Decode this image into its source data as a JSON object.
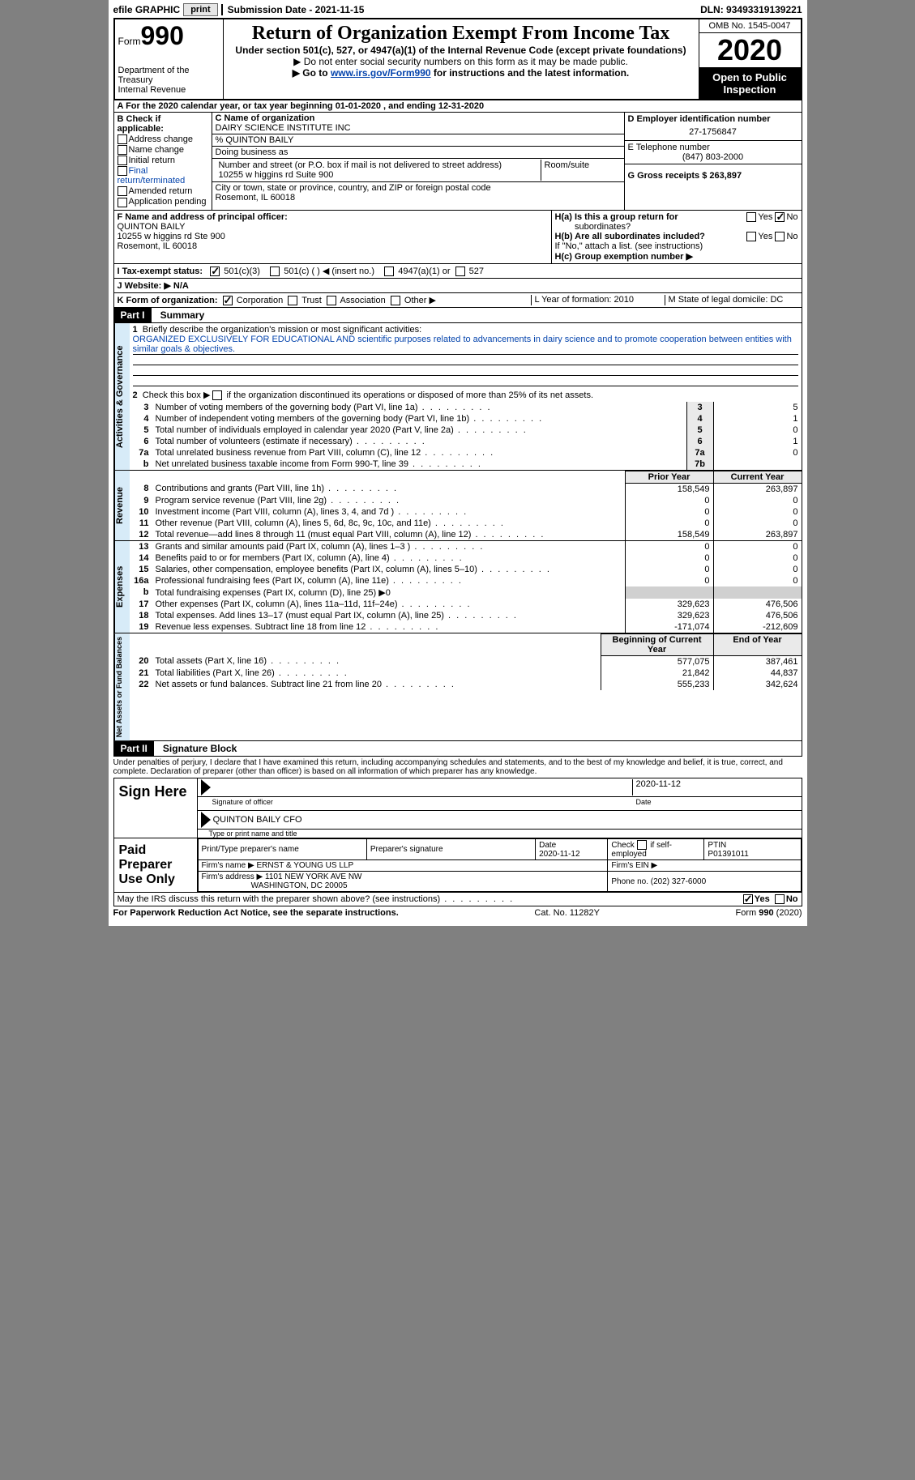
{
  "topbar": {
    "efile_label": "efile GRAPHIC",
    "print_btn": "print",
    "submission_label": "Submission Date - 2021-11-15",
    "dln": "DLN: 93493319139221"
  },
  "header": {
    "form_label": "Form",
    "form_number": "990",
    "dept": "Department of the Treasury",
    "irs": "Internal Revenue",
    "title": "Return of Organization Exempt From Income Tax",
    "subtitle": "Under section 501(c), 527, or 4947(a)(1) of the Internal Revenue Code (except private foundations)",
    "note1": "▶ Do not enter social security numbers on this form as it may be made public.",
    "note2_pre": "▶ Go to ",
    "note2_link": "www.irs.gov/Form990",
    "note2_post": " for instructions and the latest information.",
    "omb": "OMB No. 1545-0047",
    "year": "2020",
    "open": "Open to Public Inspection"
  },
  "row_a": "A For the 2020 calendar year, or tax year beginning 01-01-2020   , and ending 12-31-2020",
  "section_b": {
    "label": "B Check if applicable:",
    "items": [
      "Address change",
      "Name change",
      "Initial return",
      "Final return/terminated",
      "Amended return",
      "Application pending"
    ]
  },
  "section_c": {
    "name_label": "C Name of organization",
    "name": "DAIRY SCIENCE INSTITUTE INC",
    "care_of": "% QUINTON BAILY",
    "dba_label": "Doing business as",
    "addr_label": "Number and street (or P.O. box if mail is not delivered to street address)",
    "room_label": "Room/suite",
    "addr": "10255 w higgins rd Suite 900",
    "city_label": "City or town, state or province, country, and ZIP or foreign postal code",
    "city": "Rosemont, IL  60018"
  },
  "section_d": {
    "ein_label": "D Employer identification number",
    "ein": "27-1756847",
    "tel_label": "E Telephone number",
    "tel": "(847) 803-2000",
    "gross_label": "G Gross receipts $ 263,897"
  },
  "section_f": {
    "label": "F  Name and address of principal officer:",
    "name": "QUINTON BAILY",
    "addr1": "10255 w higgins rd Ste 900",
    "addr2": "Rosemont, IL  60018"
  },
  "section_h": {
    "ha_label": "H(a)  Is this a group return for",
    "ha_sub": "subordinates?",
    "hb_label": "H(b)  Are all subordinates included?",
    "hb_note": "If \"No,\" attach a list. (see instructions)",
    "hc_label": "H(c)  Group exemption number ▶",
    "yes": "Yes",
    "no": "No"
  },
  "row_i": {
    "label": "I   Tax-exempt status:",
    "opt1": "501(c)(3)",
    "opt2": "501(c) (  ) ◀ (insert no.)",
    "opt3": "4947(a)(1) or",
    "opt4": "527"
  },
  "row_j": {
    "label": "J  Website: ▶  N/A"
  },
  "row_k": {
    "label": "K Form of organization:",
    "opts": [
      "Corporation",
      "Trust",
      "Association",
      "Other ▶"
    ],
    "l": "L Year of formation: 2010",
    "m": "M State of legal domicile: DC"
  },
  "part1": {
    "header": "Part I",
    "title": "Summary",
    "q1_label": "Briefly describe the organization's mission or most significant activities:",
    "q1_text": "ORGANIZED EXCLUSIVELY FOR EDUCATIONAL AND scientific purposes related to advancements in dairy science and to promote cooperation between entities with similar goals & objectives.",
    "q2": "Check this box ▶        if the organization discontinued its operations or disposed of more than 25% of its net assets.",
    "lines_gov": [
      {
        "n": "3",
        "t": "Number of voting members of the governing body (Part VI, line 1a)",
        "k": "3",
        "v": "5"
      },
      {
        "n": "4",
        "t": "Number of independent voting members of the governing body (Part VI, line 1b)",
        "k": "4",
        "v": "1"
      },
      {
        "n": "5",
        "t": "Total number of individuals employed in calendar year 2020 (Part V, line 2a)",
        "k": "5",
        "v": "0"
      },
      {
        "n": "6",
        "t": "Total number of volunteers (estimate if necessary)",
        "k": "6",
        "v": "1"
      },
      {
        "n": "7a",
        "t": "Total unrelated business revenue from Part VIII, column (C), line 12",
        "k": "7a",
        "v": "0"
      },
      {
        "n": "b",
        "t": "Net unrelated business taxable income from Form 990-T, line 39",
        "k": "7b",
        "v": ""
      }
    ],
    "col_prior": "Prior Year",
    "col_current": "Current Year",
    "revenue": [
      {
        "n": "8",
        "t": "Contributions and grants (Part VIII, line 1h)",
        "p": "158,549",
        "c": "263,897"
      },
      {
        "n": "9",
        "t": "Program service revenue (Part VIII, line 2g)",
        "p": "0",
        "c": "0"
      },
      {
        "n": "10",
        "t": "Investment income (Part VIII, column (A), lines 3, 4, and 7d )",
        "p": "0",
        "c": "0"
      },
      {
        "n": "11",
        "t": "Other revenue (Part VIII, column (A), lines 5, 6d, 8c, 9c, 10c, and 11e)",
        "p": "0",
        "c": "0"
      },
      {
        "n": "12",
        "t": "Total revenue—add lines 8 through 11 (must equal Part VIII, column (A), line 12)",
        "p": "158,549",
        "c": "263,897"
      }
    ],
    "expenses": [
      {
        "n": "13",
        "t": "Grants and similar amounts paid (Part IX, column (A), lines 1–3 )",
        "p": "0",
        "c": "0"
      },
      {
        "n": "14",
        "t": "Benefits paid to or for members (Part IX, column (A), line 4)",
        "p": "0",
        "c": "0"
      },
      {
        "n": "15",
        "t": "Salaries, other compensation, employee benefits (Part IX, column (A), lines 5–10)",
        "p": "0",
        "c": "0"
      },
      {
        "n": "16a",
        "t": "Professional fundraising fees (Part IX, column (A), line 11e)",
        "p": "0",
        "c": "0"
      },
      {
        "n": "b",
        "t": "Total fundraising expenses (Part IX, column (D), line 25) ▶0",
        "p": "",
        "c": "",
        "shade": true
      },
      {
        "n": "17",
        "t": "Other expenses (Part IX, column (A), lines 11a–11d, 11f–24e)",
        "p": "329,623",
        "c": "476,506"
      },
      {
        "n": "18",
        "t": "Total expenses. Add lines 13–17 (must equal Part IX, column (A), line 25)",
        "p": "329,623",
        "c": "476,506"
      },
      {
        "n": "19",
        "t": "Revenue less expenses. Subtract line 18 from line 12",
        "p": "-171,074",
        "c": "-212,609"
      }
    ],
    "col_begin": "Beginning of Current Year",
    "col_end": "End of Year",
    "netassets": [
      {
        "n": "20",
        "t": "Total assets (Part X, line 16)",
        "p": "577,075",
        "c": "387,461"
      },
      {
        "n": "21",
        "t": "Total liabilities (Part X, line 26)",
        "p": "21,842",
        "c": "44,837"
      },
      {
        "n": "22",
        "t": "Net assets or fund balances. Subtract line 21 from line 20",
        "p": "555,233",
        "c": "342,624"
      }
    ]
  },
  "part2": {
    "header": "Part II",
    "title": "Signature Block",
    "penalties": "Under penalties of perjury, I declare that I have examined this return, including accompanying schedules and statements, and to the best of my knowledge and belief, it is true, correct, and complete. Declaration of preparer (other than officer) is based on all information of which preparer has any knowledge.",
    "sign_here": "Sign Here",
    "sig_officer_caption": "Signature of officer",
    "date_caption": "Date",
    "sig_date": "2020-11-12",
    "officer_name": "QUINTON BAILY CFO",
    "name_title_caption": "Type or print name and title",
    "paid_label": "Paid Preparer Use Only",
    "prep_name_label": "Print/Type preparer's name",
    "prep_sig_label": "Preparer's signature",
    "prep_date_label": "Date",
    "prep_date": "2020-11-12",
    "check_self": "Check        if self-employed",
    "ptin_label": "PTIN",
    "ptin": "P01391011",
    "firm_name_label": "Firm's name   ▶",
    "firm_name": "ERNST & YOUNG US LLP",
    "firm_ein_label": "Firm's EIN ▶",
    "firm_addr_label": "Firm's address ▶",
    "firm_addr1": "1101 NEW YORK AVE NW",
    "firm_addr2": "WASHINGTON, DC  20005",
    "phone_label": "Phone no.",
    "phone": "(202) 327-6000",
    "discuss": "May the IRS discuss this return with the preparer shown above? (see instructions)"
  },
  "footer": {
    "left": "For Paperwork Reduction Act Notice, see the separate instructions.",
    "mid": "Cat. No. 11282Y",
    "right": "Form 990 (2020)"
  }
}
